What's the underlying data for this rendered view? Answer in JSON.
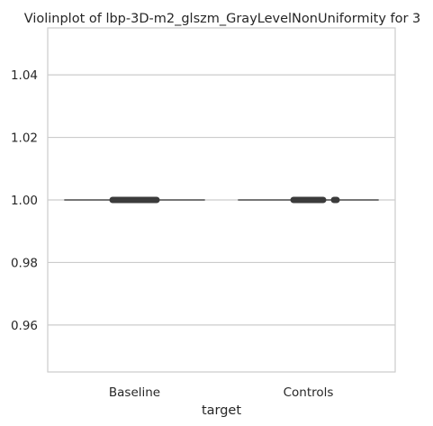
{
  "chart_data": {
    "type": "violin",
    "title": "Violinplot of lbp-3D-m2_glszm_GrayLevelNonUniformity for 3",
    "xlabel": "target",
    "ylabel": "",
    "categories": [
      "Baseline",
      "Controls"
    ],
    "ylim": [
      0.945,
      1.055
    ],
    "yticks": [
      0.96,
      0.98,
      1.0,
      1.02,
      1.04
    ],
    "ytick_labels": [
      "0.96",
      "0.98",
      "1.00",
      "1.02",
      "1.04"
    ],
    "series": [
      {
        "category": "Baseline",
        "values_constant": 1.0,
        "min": 1.0,
        "max": 1.0,
        "median": 1.0
      },
      {
        "category": "Controls",
        "values_constant": 1.0,
        "min": 1.0,
        "max": 1.0,
        "median": 1.0
      }
    ],
    "grid": "horizontal",
    "legend": "none",
    "colors": {
      "violin_line": "#4d4d4d",
      "box": "#3b3b3b",
      "grid": "#cccccc",
      "frame": "#cccccc",
      "text": "#262626"
    }
  }
}
